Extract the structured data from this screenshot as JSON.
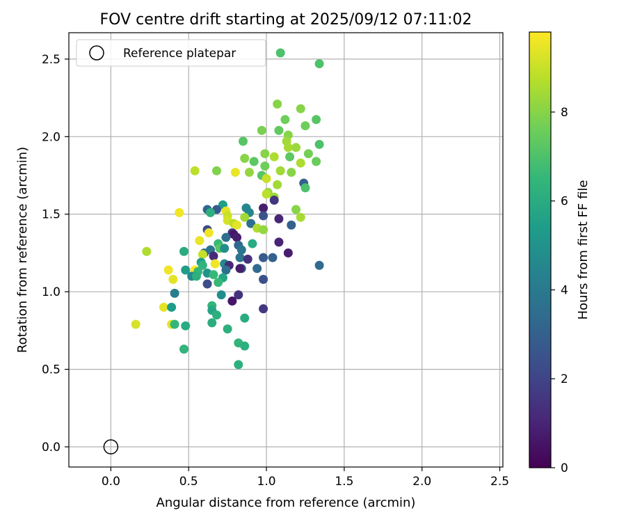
{
  "chart_data": {
    "type": "scatter",
    "title": "FOV centre drift starting at 2025/09/12 07:11:02",
    "xlabel": "Angular distance from reference (arcmin)",
    "ylabel": "Rotation from reference (arcmin)",
    "xlim": [
      -0.27,
      2.52
    ],
    "ylim": [
      -0.13,
      2.67
    ],
    "xticks": [
      0.0,
      0.5,
      1.0,
      1.5,
      2.0,
      2.5
    ],
    "yticks": [
      0.0,
      0.5,
      1.0,
      1.5,
      2.0,
      2.5
    ],
    "xtick_labels": [
      "0.0",
      "0.5",
      "1.0",
      "1.5",
      "2.0",
      "2.5"
    ],
    "ytick_labels": [
      "0.0",
      "0.5",
      "1.0",
      "1.5",
      "2.0",
      "2.5"
    ],
    "grid": true,
    "legend": {
      "placement": "top-left",
      "entries": [
        {
          "label": "Reference platepar",
          "marker": "open-circle"
        }
      ]
    },
    "reference_point": {
      "x": 0.0,
      "y": 0.0
    },
    "colorbar": {
      "label": "Hours from first FF file",
      "colormap": "viridis",
      "range": [
        0,
        9.8
      ],
      "ticks": [
        0,
        2,
        4,
        6,
        8
      ],
      "tick_labels": [
        "0",
        "2",
        "4",
        "6",
        "8"
      ]
    },
    "points": [
      {
        "x": 1.09,
        "y": 2.54,
        "c": 7.0
      },
      {
        "x": 1.34,
        "y": 2.47,
        "c": 7.0
      },
      {
        "x": 1.07,
        "y": 2.21,
        "c": 8.0
      },
      {
        "x": 1.22,
        "y": 2.18,
        "c": 8.0
      },
      {
        "x": 1.12,
        "y": 2.11,
        "c": 7.6
      },
      {
        "x": 1.32,
        "y": 2.11,
        "c": 7.2
      },
      {
        "x": 1.25,
        "y": 2.07,
        "c": 7.6
      },
      {
        "x": 1.08,
        "y": 2.04,
        "c": 7.4
      },
      {
        "x": 0.97,
        "y": 2.04,
        "c": 7.8
      },
      {
        "x": 1.14,
        "y": 2.01,
        "c": 8.0
      },
      {
        "x": 1.13,
        "y": 1.97,
        "c": 8.4
      },
      {
        "x": 0.85,
        "y": 1.97,
        "c": 7.2
      },
      {
        "x": 1.34,
        "y": 1.95,
        "c": 7.0
      },
      {
        "x": 1.14,
        "y": 1.93,
        "c": 8.5
      },
      {
        "x": 1.19,
        "y": 1.93,
        "c": 8.3
      },
      {
        "x": 1.27,
        "y": 1.89,
        "c": 7.7
      },
      {
        "x": 0.99,
        "y": 1.89,
        "c": 8.0
      },
      {
        "x": 1.05,
        "y": 1.87,
        "c": 8.6
      },
      {
        "x": 1.15,
        "y": 1.87,
        "c": 7.3
      },
      {
        "x": 0.86,
        "y": 1.86,
        "c": 8.0
      },
      {
        "x": 0.92,
        "y": 1.84,
        "c": 7.3
      },
      {
        "x": 1.32,
        "y": 1.84,
        "c": 7.5
      },
      {
        "x": 1.22,
        "y": 1.83,
        "c": 8.6
      },
      {
        "x": 0.99,
        "y": 1.81,
        "c": 7.6
      },
      {
        "x": 0.68,
        "y": 1.78,
        "c": 7.9
      },
      {
        "x": 0.54,
        "y": 1.78,
        "c": 8.8
      },
      {
        "x": 0.8,
        "y": 1.77,
        "c": 9.5
      },
      {
        "x": 1.09,
        "y": 1.78,
        "c": 8.4
      },
      {
        "x": 0.89,
        "y": 1.77,
        "c": 8.2
      },
      {
        "x": 1.16,
        "y": 1.77,
        "c": 8.0
      },
      {
        "x": 0.97,
        "y": 1.75,
        "c": 7.2
      },
      {
        "x": 1.0,
        "y": 1.73,
        "c": 9.0
      },
      {
        "x": 1.24,
        "y": 1.7,
        "c": 3.0
      },
      {
        "x": 1.07,
        "y": 1.69,
        "c": 8.4
      },
      {
        "x": 1.25,
        "y": 1.67,
        "c": 7.0
      },
      {
        "x": 1.01,
        "y": 1.64,
        "c": 8.2
      },
      {
        "x": 1.0,
        "y": 1.63,
        "c": 8.8
      },
      {
        "x": 1.05,
        "y": 1.61,
        "c": 8.3
      },
      {
        "x": 1.05,
        "y": 1.59,
        "c": 1.5
      },
      {
        "x": 0.72,
        "y": 1.56,
        "c": 5.5
      },
      {
        "x": 0.87,
        "y": 1.54,
        "c": 4.5
      },
      {
        "x": 0.98,
        "y": 1.54,
        "c": 0.8
      },
      {
        "x": 0.62,
        "y": 1.53,
        "c": 3.2
      },
      {
        "x": 0.68,
        "y": 1.53,
        "c": 2.8
      },
      {
        "x": 1.19,
        "y": 1.53,
        "c": 8.0
      },
      {
        "x": 0.74,
        "y": 1.52,
        "c": 9.4
      },
      {
        "x": 0.64,
        "y": 1.51,
        "c": 6.2
      },
      {
        "x": 0.44,
        "y": 1.51,
        "c": 9.6
      },
      {
        "x": 0.89,
        "y": 1.51,
        "c": 4.5
      },
      {
        "x": 0.75,
        "y": 1.49,
        "c": 9.0
      },
      {
        "x": 0.86,
        "y": 1.48,
        "c": 8.4
      },
      {
        "x": 0.98,
        "y": 1.49,
        "c": 2.5
      },
      {
        "x": 1.22,
        "y": 1.48,
        "c": 8.5
      },
      {
        "x": 1.08,
        "y": 1.47,
        "c": 1.0
      },
      {
        "x": 0.75,
        "y": 1.46,
        "c": 9.2
      },
      {
        "x": 0.79,
        "y": 1.44,
        "c": 8.8
      },
      {
        "x": 0.81,
        "y": 1.43,
        "c": 9.4
      },
      {
        "x": 0.9,
        "y": 1.44,
        "c": 3.5
      },
      {
        "x": 1.16,
        "y": 1.43,
        "c": 3.0
      },
      {
        "x": 0.94,
        "y": 1.41,
        "c": 8.6
      },
      {
        "x": 0.98,
        "y": 1.4,
        "c": 8.2
      },
      {
        "x": 0.62,
        "y": 1.4,
        "c": 2.2
      },
      {
        "x": 0.63,
        "y": 1.38,
        "c": 9.6
      },
      {
        "x": 0.78,
        "y": 1.38,
        "c": 1.6
      },
      {
        "x": 0.79,
        "y": 1.37,
        "c": 0.6
      },
      {
        "x": 0.74,
        "y": 1.35,
        "c": 3.5
      },
      {
        "x": 0.81,
        "y": 1.35,
        "c": 0.8
      },
      {
        "x": 0.57,
        "y": 1.33,
        "c": 9.5
      },
      {
        "x": 1.08,
        "y": 1.32,
        "c": 1.0
      },
      {
        "x": 0.91,
        "y": 1.31,
        "c": 6.0
      },
      {
        "x": 0.69,
        "y": 1.31,
        "c": 6.6
      },
      {
        "x": 0.82,
        "y": 1.3,
        "c": 3.2
      },
      {
        "x": 0.7,
        "y": 1.28,
        "c": 7.2
      },
      {
        "x": 0.64,
        "y": 1.27,
        "c": 3.8
      },
      {
        "x": 0.73,
        "y": 1.28,
        "c": 4.8
      },
      {
        "x": 0.84,
        "y": 1.27,
        "c": 3.8
      },
      {
        "x": 0.23,
        "y": 1.26,
        "c": 8.6
      },
      {
        "x": 0.47,
        "y": 1.26,
        "c": 6.0
      },
      {
        "x": 0.6,
        "y": 1.25,
        "c": 3.5
      },
      {
        "x": 0.59,
        "y": 1.24,
        "c": 9.0
      },
      {
        "x": 1.14,
        "y": 1.25,
        "c": 0.8
      },
      {
        "x": 0.66,
        "y": 1.23,
        "c": 1.2
      },
      {
        "x": 0.83,
        "y": 1.22,
        "c": 3.8
      },
      {
        "x": 0.88,
        "y": 1.21,
        "c": 1.4
      },
      {
        "x": 0.98,
        "y": 1.22,
        "c": 2.8
      },
      {
        "x": 1.04,
        "y": 1.22,
        "c": 3.0
      },
      {
        "x": 0.58,
        "y": 1.19,
        "c": 5.5
      },
      {
        "x": 0.67,
        "y": 1.18,
        "c": 9.6
      },
      {
        "x": 0.73,
        "y": 1.18,
        "c": 4.6
      },
      {
        "x": 0.76,
        "y": 1.17,
        "c": 1.2
      },
      {
        "x": 0.59,
        "y": 1.17,
        "c": 6.3
      },
      {
        "x": 0.54,
        "y": 1.14,
        "c": 9.8
      },
      {
        "x": 0.37,
        "y": 1.14,
        "c": 9.6
      },
      {
        "x": 0.48,
        "y": 1.14,
        "c": 5.4
      },
      {
        "x": 0.56,
        "y": 1.13,
        "c": 6.5
      },
      {
        "x": 0.74,
        "y": 1.14,
        "c": 3.6
      },
      {
        "x": 0.84,
        "y": 1.15,
        "c": 3.0
      },
      {
        "x": 0.83,
        "y": 1.15,
        "c": 0.8
      },
      {
        "x": 0.94,
        "y": 1.15,
        "c": 3.4
      },
      {
        "x": 0.62,
        "y": 1.12,
        "c": 5.0
      },
      {
        "x": 0.66,
        "y": 1.11,
        "c": 6.6
      },
      {
        "x": 1.34,
        "y": 1.17,
        "c": 3.4
      },
      {
        "x": 0.52,
        "y": 1.1,
        "c": 4.6
      },
      {
        "x": 0.55,
        "y": 1.1,
        "c": 6.2
      },
      {
        "x": 0.72,
        "y": 1.09,
        "c": 5.8
      },
      {
        "x": 0.4,
        "y": 1.08,
        "c": 9.4
      },
      {
        "x": 0.98,
        "y": 1.08,
        "c": 2.4
      },
      {
        "x": 0.69,
        "y": 1.06,
        "c": 6.6
      },
      {
        "x": 0.62,
        "y": 1.05,
        "c": 2.3
      },
      {
        "x": 0.41,
        "y": 0.99,
        "c": 4.2
      },
      {
        "x": 0.71,
        "y": 0.98,
        "c": 4.8
      },
      {
        "x": 0.82,
        "y": 0.98,
        "c": 1.4
      },
      {
        "x": 0.78,
        "y": 0.94,
        "c": 0.6
      },
      {
        "x": 0.65,
        "y": 0.91,
        "c": 6.4
      },
      {
        "x": 0.34,
        "y": 0.9,
        "c": 9.4
      },
      {
        "x": 0.39,
        "y": 0.9,
        "c": 5.4
      },
      {
        "x": 0.98,
        "y": 0.89,
        "c": 1.6
      },
      {
        "x": 0.65,
        "y": 0.88,
        "c": 5.8
      },
      {
        "x": 0.68,
        "y": 0.85,
        "c": 6.2
      },
      {
        "x": 0.86,
        "y": 0.83,
        "c": 6.0
      },
      {
        "x": 0.16,
        "y": 0.79,
        "c": 9.2
      },
      {
        "x": 0.39,
        "y": 0.79,
        "c": 9.4
      },
      {
        "x": 0.41,
        "y": 0.79,
        "c": 6.5
      },
      {
        "x": 0.48,
        "y": 0.78,
        "c": 6.0
      },
      {
        "x": 0.65,
        "y": 0.8,
        "c": 6.1
      },
      {
        "x": 0.75,
        "y": 0.76,
        "c": 6.2
      },
      {
        "x": 0.82,
        "y": 0.67,
        "c": 6.4
      },
      {
        "x": 0.86,
        "y": 0.65,
        "c": 6.2
      },
      {
        "x": 0.47,
        "y": 0.63,
        "c": 6.4
      },
      {
        "x": 0.82,
        "y": 0.53,
        "c": 6.2
      }
    ]
  }
}
